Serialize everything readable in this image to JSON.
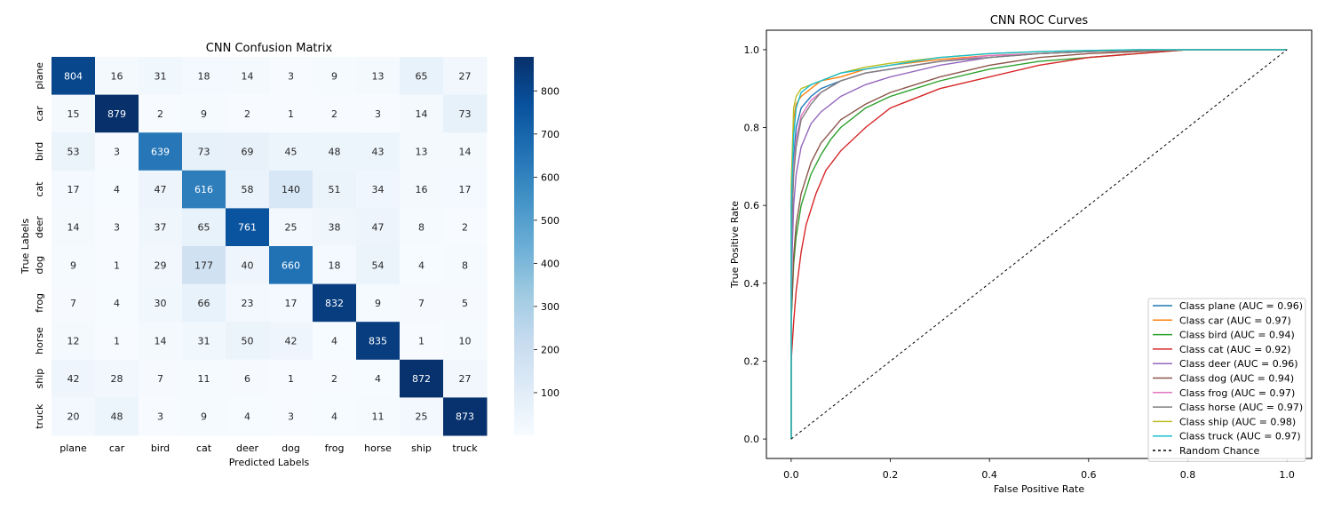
{
  "chart_data": [
    {
      "type": "heatmap",
      "title": "CNN Confusion Matrix",
      "xlabel": "Predicted Labels",
      "ylabel": "True Labels",
      "x_categories": [
        "plane",
        "car",
        "bird",
        "cat",
        "deer",
        "dog",
        "frog",
        "horse",
        "ship",
        "truck"
      ],
      "y_categories": [
        "plane",
        "car",
        "bird",
        "cat",
        "deer",
        "dog",
        "frog",
        "horse",
        "ship",
        "truck"
      ],
      "values": [
        [
          804,
          16,
          31,
          18,
          14,
          3,
          9,
          13,
          65,
          27
        ],
        [
          15,
          879,
          2,
          9,
          2,
          1,
          2,
          3,
          14,
          73
        ],
        [
          53,
          3,
          639,
          73,
          69,
          45,
          48,
          43,
          13,
          14
        ],
        [
          17,
          4,
          47,
          616,
          58,
          140,
          51,
          34,
          16,
          17
        ],
        [
          14,
          3,
          37,
          65,
          761,
          25,
          38,
          47,
          8,
          2
        ],
        [
          9,
          1,
          29,
          177,
          40,
          660,
          18,
          54,
          4,
          8
        ],
        [
          7,
          4,
          30,
          66,
          23,
          17,
          832,
          9,
          7,
          5
        ],
        [
          12,
          1,
          14,
          31,
          50,
          42,
          4,
          835,
          1,
          10
        ],
        [
          42,
          28,
          7,
          11,
          6,
          1,
          2,
          4,
          872,
          27
        ],
        [
          20,
          48,
          3,
          9,
          4,
          3,
          4,
          11,
          25,
          873
        ]
      ],
      "colorbar": {
        "cmap": "Blues",
        "min": 1,
        "max": 879,
        "ticks": [
          100,
          200,
          300,
          400,
          500,
          600,
          700,
          800
        ]
      }
    },
    {
      "type": "line",
      "title": "CNN ROC Curves",
      "xlabel": "False Positive Rate",
      "ylabel": "True Positive Rate",
      "xlim": [
        -0.05,
        1.05
      ],
      "ylim": [
        -0.05,
        1.05
      ],
      "xticks": [
        "0.0",
        "0.2",
        "0.4",
        "0.6",
        "0.8",
        "1.0"
      ],
      "yticks": [
        "0.0",
        "0.2",
        "0.4",
        "0.6",
        "0.8",
        "1.0"
      ],
      "legend_position": "lower-right",
      "series": [
        {
          "name": "Class plane (AUC = 0.96)",
          "color": "#1f77b4",
          "x": [
            0,
            0,
            0.005,
            0.01,
            0.02,
            0.04,
            0.06,
            0.1,
            0.15,
            0.2,
            0.3,
            0.4,
            0.5,
            0.6,
            0.7,
            0.8,
            0.9,
            1.0
          ],
          "y": [
            0,
            0.5,
            0.72,
            0.8,
            0.85,
            0.88,
            0.9,
            0.92,
            0.94,
            0.95,
            0.97,
            0.98,
            0.99,
            0.995,
            0.998,
            1.0,
            1.0,
            1.0
          ]
        },
        {
          "name": "Class car (AUC = 0.97)",
          "color": "#ff7f0e",
          "x": [
            0,
            0,
            0.005,
            0.01,
            0.02,
            0.04,
            0.06,
            0.1,
            0.15,
            0.2,
            0.3,
            0.4,
            0.5,
            0.6,
            0.7,
            0.8,
            0.9,
            1.0
          ],
          "y": [
            0,
            0.6,
            0.82,
            0.86,
            0.88,
            0.9,
            0.92,
            0.93,
            0.95,
            0.96,
            0.975,
            0.985,
            0.99,
            0.995,
            0.998,
            1.0,
            1.0,
            1.0
          ]
        },
        {
          "name": "Class bird (AUC = 0.94)",
          "color": "#2ca02c",
          "x": [
            0,
            0,
            0.005,
            0.01,
            0.02,
            0.04,
            0.06,
            0.08,
            0.1,
            0.15,
            0.2,
            0.3,
            0.4,
            0.5,
            0.6,
            0.7,
            0.8,
            1.0
          ],
          "y": [
            0,
            0.3,
            0.45,
            0.52,
            0.6,
            0.68,
            0.73,
            0.77,
            0.8,
            0.85,
            0.88,
            0.92,
            0.95,
            0.97,
            0.98,
            0.99,
            1.0,
            1.0
          ]
        },
        {
          "name": "Class cat (AUC = 0.92)",
          "color": "#d62728",
          "x": [
            0,
            0,
            0.005,
            0.01,
            0.02,
            0.03,
            0.05,
            0.07,
            0.1,
            0.15,
            0.2,
            0.3,
            0.4,
            0.5,
            0.6,
            0.7,
            0.8,
            1.0
          ],
          "y": [
            0,
            0.2,
            0.3,
            0.38,
            0.48,
            0.55,
            0.63,
            0.69,
            0.74,
            0.8,
            0.85,
            0.9,
            0.93,
            0.96,
            0.98,
            0.99,
            1.0,
            1.0
          ]
        },
        {
          "name": "Class deer (AUC = 0.96)",
          "color": "#9467bd",
          "x": [
            0,
            0,
            0.005,
            0.01,
            0.02,
            0.04,
            0.06,
            0.08,
            0.1,
            0.15,
            0.2,
            0.3,
            0.4,
            0.5,
            0.6,
            0.7,
            0.8,
            1.0
          ],
          "y": [
            0,
            0.4,
            0.6,
            0.68,
            0.75,
            0.81,
            0.84,
            0.86,
            0.88,
            0.91,
            0.93,
            0.96,
            0.98,
            0.99,
            0.995,
            1.0,
            1.0,
            1.0
          ]
        },
        {
          "name": "Class dog (AUC = 0.94)",
          "color": "#8c564b",
          "x": [
            0,
            0,
            0.005,
            0.01,
            0.02,
            0.04,
            0.06,
            0.08,
            0.1,
            0.15,
            0.2,
            0.3,
            0.4,
            0.5,
            0.6,
            0.7,
            0.8,
            1.0
          ],
          "y": [
            0,
            0.3,
            0.47,
            0.55,
            0.63,
            0.71,
            0.76,
            0.79,
            0.82,
            0.86,
            0.89,
            0.93,
            0.96,
            0.98,
            0.99,
            0.995,
            1.0,
            1.0
          ]
        },
        {
          "name": "Class frog (AUC = 0.97)",
          "color": "#e377c2",
          "x": [
            0,
            0,
            0.005,
            0.01,
            0.02,
            0.04,
            0.06,
            0.1,
            0.15,
            0.2,
            0.3,
            0.4,
            0.5,
            0.6,
            0.7,
            0.8,
            0.9,
            1.0
          ],
          "y": [
            0,
            0.5,
            0.7,
            0.77,
            0.83,
            0.87,
            0.89,
            0.92,
            0.94,
            0.95,
            0.97,
            0.985,
            0.99,
            0.995,
            0.998,
            1.0,
            1.0,
            1.0
          ]
        },
        {
          "name": "Class horse (AUC = 0.97)",
          "color": "#7f7f7f",
          "x": [
            0,
            0,
            0.005,
            0.01,
            0.02,
            0.04,
            0.06,
            0.1,
            0.15,
            0.2,
            0.3,
            0.4,
            0.5,
            0.6,
            0.7,
            0.8,
            0.9,
            1.0
          ],
          "y": [
            0,
            0.5,
            0.68,
            0.75,
            0.82,
            0.86,
            0.89,
            0.92,
            0.94,
            0.95,
            0.97,
            0.98,
            0.99,
            0.995,
            0.998,
            1.0,
            1.0,
            1.0
          ]
        },
        {
          "name": "Class ship (AUC = 0.98)",
          "color": "#bcbd22",
          "x": [
            0,
            0,
            0.005,
            0.01,
            0.02,
            0.04,
            0.06,
            0.1,
            0.15,
            0.2,
            0.3,
            0.4,
            0.5,
            0.6,
            0.7,
            0.8,
            0.9,
            1.0
          ],
          "y": [
            0,
            0.65,
            0.85,
            0.88,
            0.9,
            0.91,
            0.92,
            0.94,
            0.955,
            0.965,
            0.98,
            0.99,
            0.995,
            0.998,
            1.0,
            1.0,
            1.0,
            1.0
          ]
        },
        {
          "name": "Class truck (AUC = 0.97)",
          "color": "#17becf",
          "x": [
            0,
            0,
            0.005,
            0.01,
            0.02,
            0.04,
            0.06,
            0.1,
            0.15,
            0.2,
            0.3,
            0.4,
            0.5,
            0.6,
            0.7,
            0.8,
            0.9,
            1.0
          ],
          "y": [
            0,
            0.6,
            0.78,
            0.85,
            0.89,
            0.91,
            0.92,
            0.94,
            0.95,
            0.96,
            0.98,
            0.99,
            0.995,
            0.998,
            1.0,
            1.0,
            1.0,
            1.0
          ]
        },
        {
          "name": "Random Chance",
          "color": "#000000",
          "dashed": true,
          "x": [
            0,
            1
          ],
          "y": [
            0,
            1
          ]
        }
      ]
    }
  ]
}
